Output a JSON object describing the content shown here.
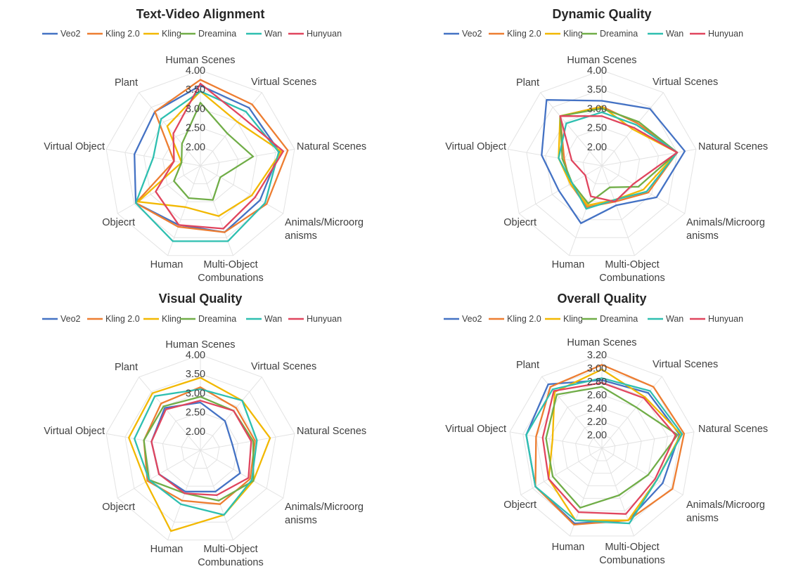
{
  "colors": {
    "Veo2": "#4472c4",
    "Kling 2.0": "#ed7d31",
    "Kling": "#f2b800",
    "Dreamina": "#70ad47",
    "Wan": "#2ebfb0",
    "Hunyuan": "#e0455e"
  },
  "chart_data": [
    {
      "type": "radar",
      "title": "Text-Video Alignment",
      "categories": [
        "Human Scenes",
        "Virtual Scenes",
        "Natural Scenes",
        "Animals/Microorganisms",
        "Multi-Object Combunations",
        "Human",
        "Objecrt",
        "Virtual Object",
        "Plant"
      ],
      "category_lines": [
        [
          "Human Scenes"
        ],
        [
          "Virtual Scenes"
        ],
        [
          "Natural Scenes"
        ],
        [
          "Animals/Microorg",
          "anisms"
        ],
        [
          "Multi-Object",
          "Combunations"
        ],
        [
          "Human"
        ],
        [
          "Objecrt"
        ],
        [
          "Virtual Object"
        ],
        [
          "Plant"
        ]
      ],
      "tick_labels": [
        "2.00",
        "2.50",
        "3.00",
        "3.50",
        "4.00"
      ],
      "ylim": [
        1.5,
        4.0
      ],
      "series": [
        {
          "name": "Veo2",
          "values": [
            3.6,
            3.48,
            3.6,
            3.3,
            3.35,
            3.15,
            3.45,
            3.25,
            3.35
          ]
        },
        {
          "name": "Kling 2.0",
          "values": [
            3.75,
            3.6,
            3.82,
            3.5,
            3.35,
            3.2,
            3.45,
            2.2,
            3.35
          ]
        },
        {
          "name": "Kling",
          "values": [
            3.45,
            3.0,
            3.65,
            3.05,
            2.9,
            2.65,
            3.38,
            2.0,
            2.85
          ]
        },
        {
          "name": "Dreamina",
          "values": [
            3.15,
            2.6,
            2.9,
            2.1,
            2.45,
            2.4,
            2.3,
            2.0,
            2.25
          ]
        },
        {
          "name": "Wan",
          "values": [
            3.45,
            3.35,
            3.58,
            3.45,
            3.6,
            3.6,
            3.45,
            2.75,
            3.1
          ]
        },
        {
          "name": "Hunyuan",
          "values": [
            3.65,
            3.18,
            3.7,
            3.15,
            3.25,
            3.15,
            2.85,
            2.2,
            2.6
          ]
        }
      ]
    },
    {
      "type": "radar",
      "title": "Dynamic Quality",
      "categories": [
        "Human Scenes",
        "Virtual Scenes",
        "Natural Scenes",
        "Animals/Microorganisms",
        "Multi-Object Combunations",
        "Human",
        "Objecrt",
        "Virtual Object",
        "Plant"
      ],
      "category_lines": [
        [
          "Human Scenes"
        ],
        [
          "Virtual Scenes"
        ],
        [
          "Natural Scenes"
        ],
        [
          "Animals/Microorg",
          "anisms"
        ],
        [
          "Multi-Object",
          "Combunations"
        ],
        [
          "Human"
        ],
        [
          "Objecrt"
        ],
        [
          "Virtual Object"
        ],
        [
          "Plant"
        ]
      ],
      "tick_labels": [
        "2.00",
        "2.50",
        "3.00",
        "3.50",
        "4.00"
      ],
      "ylim": [
        1.5,
        4.0
      ],
      "series": [
        {
          "name": "Veo2",
          "values": [
            3.2,
            3.45,
            3.7,
            3.15,
            2.6,
            3.1,
            2.8,
            3.1,
            3.75
          ]
        },
        {
          "name": "Kling 2.0",
          "values": [
            3.05,
            2.95,
            3.5,
            2.9,
            2.5,
            2.65,
            2.45,
            2.5,
            3.2
          ]
        },
        {
          "name": "Kling",
          "values": [
            3.05,
            2.75,
            3.5,
            2.75,
            2.45,
            2.6,
            2.45,
            2.65,
            3.2
          ]
        },
        {
          "name": "Dreamina",
          "values": [
            3.0,
            3.0,
            3.5,
            2.6,
            2.1,
            2.55,
            2.4,
            2.55,
            3.2
          ]
        },
        {
          "name": "Wan",
          "values": [
            2.9,
            2.9,
            3.5,
            2.85,
            2.45,
            2.7,
            2.4,
            2.65,
            2.95
          ]
        },
        {
          "name": "Hunyuan",
          "values": [
            2.8,
            2.8,
            3.5,
            2.45,
            2.5,
            2.35,
            2.0,
            2.3,
            3.2
          ]
        }
      ]
    },
    {
      "type": "radar",
      "title": "Visual Quality",
      "categories": [
        "Human Scenes",
        "Virtual Scenes",
        "Natural Scenes",
        "Animals/Microorganisms",
        "Multi-Object Combunations",
        "Human",
        "Objecrt",
        "Virtual Object",
        "Plant"
      ],
      "category_lines": [
        [
          "Human Scenes"
        ],
        [
          "Virtual Scenes"
        ],
        [
          "Natural Scenes"
        ],
        [
          "Animals/Microorg",
          "anisms"
        ],
        [
          "Multi-Object",
          "Combunations"
        ],
        [
          "Human"
        ],
        [
          "Objecrt"
        ],
        [
          "Virtual Object"
        ],
        [
          "Plant"
        ]
      ],
      "tick_labels": [
        "2.00",
        "2.50",
        "3.00",
        "3.50",
        "4.00"
      ],
      "ylim": [
        1.5,
        4.0
      ],
      "series": [
        {
          "name": "Veo2",
          "values": [
            2.75,
            2.5,
            2.35,
            2.7,
            2.65,
            2.65,
            2.75,
            2.8,
            2.95
          ]
        },
        {
          "name": "Kling 2.0",
          "values": [
            3.15,
            2.95,
            2.95,
            3.0,
            3.0,
            2.9,
            3.1,
            3.0,
            3.1
          ]
        },
        {
          "name": "Kling",
          "values": [
            3.4,
            3.2,
            3.35,
            3.1,
            3.3,
            3.75,
            3.15,
            3.4,
            3.45
          ]
        },
        {
          "name": "Dreamina",
          "values": [
            2.9,
            2.85,
            2.9,
            3.1,
            2.9,
            2.7,
            3.05,
            3.0,
            3.0
          ]
        },
        {
          "name": "Wan",
          "values": [
            3.1,
            3.2,
            3.0,
            3.05,
            3.3,
            3.0,
            3.05,
            3.25,
            3.35
          ]
        },
        {
          "name": "Hunyuan",
          "values": [
            2.8,
            2.85,
            2.85,
            2.95,
            2.75,
            2.7,
            2.75,
            2.8,
            2.9
          ]
        }
      ]
    },
    {
      "type": "radar",
      "title": "Overall Quality",
      "categories": [
        "Human Scenes",
        "Virtual Scenes",
        "Natural Scenes",
        "Animals/Microorganisms",
        "Multi-Object Combunations",
        "Human",
        "Objecrt",
        "Virtual Object",
        "Plant"
      ],
      "category_lines": [
        [
          "Human Scenes"
        ],
        [
          "Virtual Scenes"
        ],
        [
          "Natural Scenes"
        ],
        [
          "Animals/Microorg",
          "anisms"
        ],
        [
          "Multi-Object",
          "Combunations"
        ],
        [
          "Human"
        ],
        [
          "Objecrt"
        ],
        [
          "Virtual Object"
        ],
        [
          "Plant"
        ]
      ],
      "tick_labels": [
        "2.00",
        "2.20",
        "2.40",
        "2.60",
        "2.80",
        "3.00",
        "3.20"
      ],
      "ylim": [
        1.8,
        3.2
      ],
      "series": [
        {
          "name": "Veo2",
          "values": [
            2.82,
            2.88,
            2.98,
            2.85,
            2.95,
            3.0,
            2.95,
            2.95,
            3.05
          ]
        },
        {
          "name": "Kling 2.0",
          "values": [
            3.05,
            3.0,
            3.05,
            3.02,
            2.95,
            3.02,
            2.95,
            2.8,
            3.0
          ]
        },
        {
          "name": "Kling",
          "values": [
            2.98,
            2.8,
            3.0,
            2.75,
            2.95,
            2.95,
            2.72,
            2.55,
            2.9
          ]
        },
        {
          "name": "Dreamina",
          "values": [
            2.72,
            2.6,
            2.95,
            2.6,
            2.55,
            2.75,
            2.65,
            2.65,
            2.85
          ]
        },
        {
          "name": "Wan",
          "values": [
            2.85,
            2.92,
            3.02,
            2.75,
            3.0,
            2.95,
            2.95,
            2.95,
            2.95
          ]
        },
        {
          "name": "Hunyuan",
          "values": [
            2.78,
            2.78,
            2.92,
            2.72,
            2.85,
            2.82,
            2.72,
            2.7,
            2.92
          ]
        }
      ]
    }
  ]
}
